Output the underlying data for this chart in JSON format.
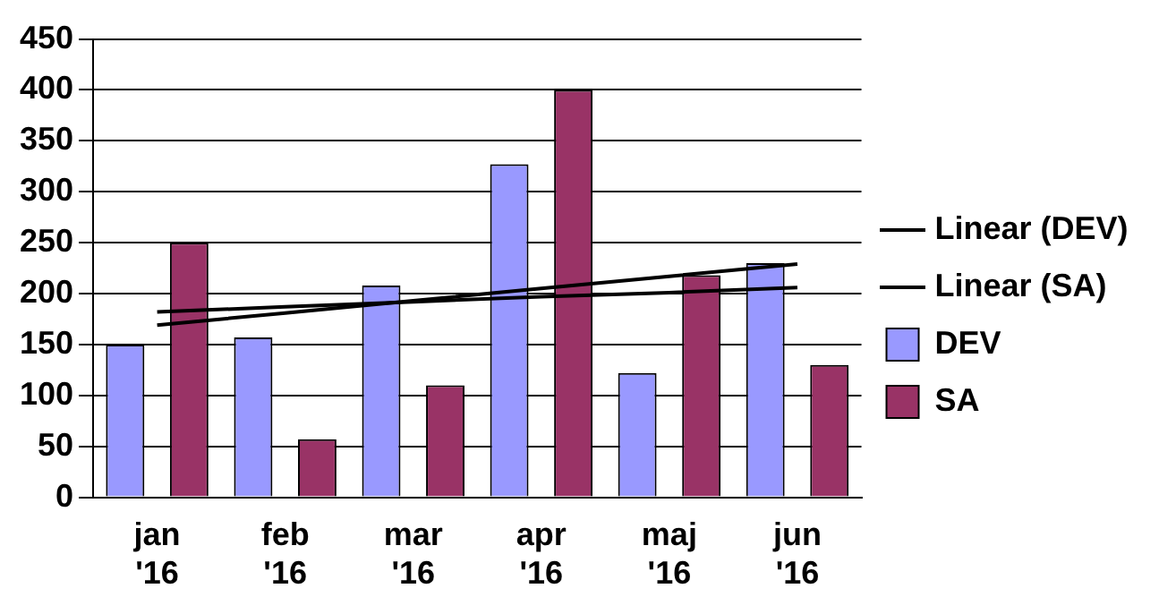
{
  "chart_data": {
    "type": "bar",
    "categories": [
      "jan '16",
      "feb '16",
      "mar '16",
      "apr '16",
      "maj '16",
      "jun '16"
    ],
    "series": [
      {
        "name": "DEV",
        "color": "#9999ff",
        "values": [
          150,
          157,
          208,
          327,
          122,
          230
        ]
      },
      {
        "name": "SA",
        "color": "#993366",
        "values": [
          250,
          57,
          110,
          400,
          218,
          130
        ]
      },
      {
        "name": "Linear (DEV)",
        "type": "line",
        "color": "#000000",
        "values": [
          169,
          181,
          193,
          205,
          217,
          229
        ]
      },
      {
        "name": "Linear (SA)",
        "type": "line",
        "color": "#000000",
        "values": [
          182,
          187,
          192,
          197,
          201,
          206
        ]
      }
    ],
    "ylim": [
      0,
      450
    ],
    "yticks": [
      0,
      50,
      100,
      150,
      200,
      250,
      300,
      350,
      400,
      450
    ],
    "grid": "y",
    "legend": "right",
    "marker": "none",
    "line_style": "solid"
  }
}
